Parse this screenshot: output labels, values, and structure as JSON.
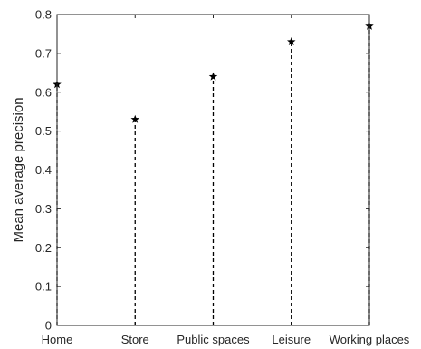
{
  "chart_data": {
    "type": "stem",
    "title": "",
    "xlabel": "",
    "ylabel": "Mean average precision",
    "categories": [
      "Home",
      "Store",
      "Public spaces",
      "Leisure",
      "Working places"
    ],
    "series": [
      {
        "values": [
          0.62,
          0.53,
          0.64,
          0.73,
          0.77
        ]
      }
    ],
    "ylim": [
      0,
      0.8
    ],
    "yticks": [
      "0",
      "0.1",
      "0.2",
      "0.3",
      "0.4",
      "0.5",
      "0.6",
      "0.7",
      "0.8"
    ],
    "grid": false,
    "marker": "star",
    "line_style": "dashed",
    "color": "#000000"
  }
}
